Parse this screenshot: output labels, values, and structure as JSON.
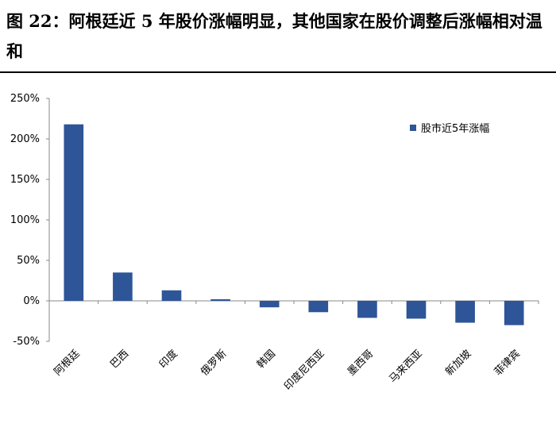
{
  "title": "图 22：阿根廷近 5 年股价涨幅明显，其他国家在股价调整后涨幅相对温和",
  "chart_data": {
    "type": "bar",
    "categories": [
      "阿根廷",
      "巴西",
      "印度",
      "俄罗斯",
      "韩国",
      "印度尼西亚",
      "墨西哥",
      "马来西亚",
      "新加坡",
      "菲律宾"
    ],
    "series": [
      {
        "name": "股市近5年涨幅",
        "values": [
          2.18,
          0.35,
          0.13,
          0.02,
          -0.08,
          -0.14,
          -0.21,
          -0.22,
          -0.27,
          -0.3
        ]
      }
    ],
    "yticks": [
      -0.5,
      0,
      0.5,
      1.0,
      1.5,
      2.0,
      2.5
    ],
    "ytick_labels": [
      "-50%",
      "0%",
      "50%",
      "100%",
      "150%",
      "200%",
      "250%"
    ],
    "ylim": [
      -0.5,
      2.5
    ],
    "grid": false,
    "legend_position": "top-right",
    "bar_color": "#2E5597"
  }
}
